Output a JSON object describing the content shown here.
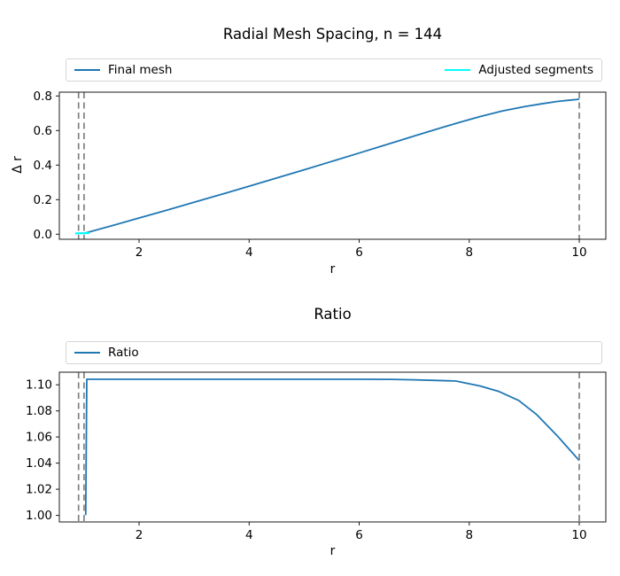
{
  "chart_data": [
    {
      "id": "radial-mesh-spacing",
      "type": "line",
      "title": "Radial Mesh Spacing, n = 144",
      "xlabel": "r",
      "ylabel": "Δ r",
      "xlim": [
        0.551,
        10.483
      ],
      "ylim": [
        -0.029,
        0.822
      ],
      "grid": false,
      "legend_position": "above-axes, expanded full width, 2 columns",
      "x_ticks": [
        "2",
        "4",
        "6",
        "8",
        "10"
      ],
      "x_tick_values": [
        2,
        4,
        6,
        8,
        10
      ],
      "y_ticks": [
        "0.0",
        "0.2",
        "0.4",
        "0.6",
        "0.8"
      ],
      "y_tick_values": [
        0.0,
        0.2,
        0.4,
        0.6,
        0.8
      ],
      "vlines": {
        "x": [
          0.9,
          1.0,
          10.0
        ],
        "color": "#808080",
        "style": "dashed"
      },
      "legend": [
        {
          "label": "Final mesh",
          "color": "#1f77b4"
        },
        {
          "label": "Adjusted segments",
          "color": "#00ffff"
        }
      ],
      "series": [
        {
          "name": "Final mesh",
          "color": "#1f77b4",
          "width": 1.8,
          "points": [
            [
              1.0,
              0.005
            ],
            [
              1.5,
              0.049
            ],
            [
              2.0,
              0.094
            ],
            [
              2.5,
              0.139
            ],
            [
              3.0,
              0.185
            ],
            [
              3.5,
              0.231
            ],
            [
              4.0,
              0.278
            ],
            [
              4.5,
              0.325
            ],
            [
              5.0,
              0.373
            ],
            [
              5.5,
              0.421
            ],
            [
              6.0,
              0.47
            ],
            [
              6.5,
              0.519
            ],
            [
              7.0,
              0.568
            ],
            [
              7.4,
              0.607
            ],
            [
              7.8,
              0.645
            ],
            [
              8.2,
              0.681
            ],
            [
              8.6,
              0.713
            ],
            [
              9.0,
              0.738
            ],
            [
              9.3,
              0.754
            ],
            [
              9.6,
              0.768
            ],
            [
              9.8,
              0.775
            ],
            [
              10.0,
              0.781
            ]
          ]
        },
        {
          "name": "Adjusted segments",
          "color": "#00ffff",
          "width": 2.2,
          "points": [
            [
              0.84,
              0.0048
            ],
            [
              1.1,
              0.0068
            ]
          ]
        }
      ]
    },
    {
      "id": "ratio",
      "type": "line",
      "title": "Ratio",
      "xlabel": "r",
      "ylabel": "",
      "xlim": [
        0.551,
        10.483
      ],
      "ylim": [
        0.995,
        1.1096
      ],
      "grid": false,
      "legend_position": "above-axes, expanded full width, 1 column",
      "x_ticks": [
        "2",
        "4",
        "6",
        "8",
        "10"
      ],
      "x_tick_values": [
        2,
        4,
        6,
        8,
        10
      ],
      "y_ticks": [
        "1.00",
        "1.02",
        "1.04",
        "1.06",
        "1.08",
        "1.10"
      ],
      "y_tick_values": [
        1.0,
        1.02,
        1.04,
        1.06,
        1.08,
        1.1
      ],
      "vlines": {
        "x": [
          0.9,
          1.0,
          10.0
        ],
        "color": "#808080",
        "style": "dashed"
      },
      "legend": [
        {
          "label": "Ratio",
          "color": "#1f77b4"
        }
      ],
      "series": [
        {
          "name": "Ratio",
          "color": "#1f77b4",
          "width": 1.8,
          "points": [
            [
              1.03,
              1.0003
            ],
            [
              1.05,
              1.1042
            ],
            [
              1.5,
              1.1042
            ],
            [
              2.0,
              1.1042
            ],
            [
              3.0,
              1.1042
            ],
            [
              4.0,
              1.1042
            ],
            [
              5.0,
              1.1042
            ],
            [
              6.0,
              1.1042
            ],
            [
              6.6,
              1.1041
            ],
            [
              7.0,
              1.1038
            ],
            [
              7.4,
              1.1033
            ],
            [
              7.76,
              1.1028
            ],
            [
              8.2,
              1.099
            ],
            [
              8.54,
              1.0948
            ],
            [
              8.9,
              1.088
            ],
            [
              9.23,
              1.077
            ],
            [
              9.6,
              1.061
            ],
            [
              10.0,
              1.042
            ]
          ]
        }
      ]
    }
  ]
}
